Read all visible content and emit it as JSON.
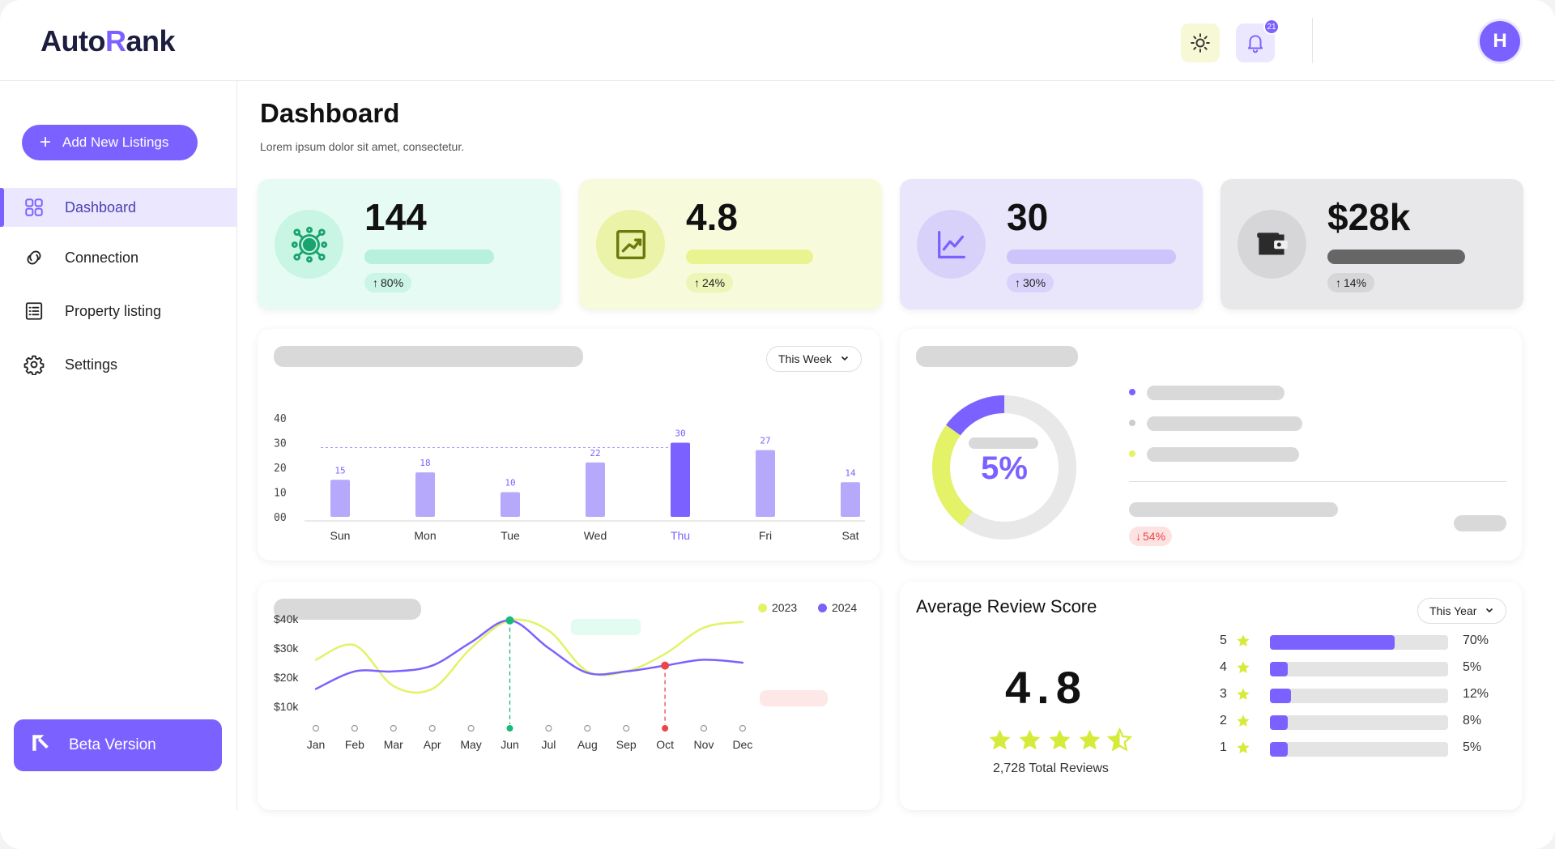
{
  "app": {
    "logo_prefix": "Auto",
    "logo_mark": "R",
    "logo_suffix": "ank"
  },
  "header": {
    "notification_count": "21",
    "avatar_initial": "H",
    "theme_icon": "sun-icon",
    "notification_icon": "bell-icon"
  },
  "sidebar": {
    "add_button": "Add New Listings",
    "items": [
      {
        "label": "Dashboard",
        "icon": "grid-icon",
        "active": true
      },
      {
        "label": "Connection",
        "icon": "link-icon",
        "active": false
      },
      {
        "label": "Property listing",
        "icon": "list-icon",
        "active": false
      },
      {
        "label": "Settings",
        "icon": "gear-icon",
        "active": false
      }
    ],
    "beta_button": "Beta Version"
  },
  "page": {
    "title": "Dashboard",
    "subtitle": "Lorem ipsum dolor sit amet, consectetur."
  },
  "stats": [
    {
      "value": "144",
      "change": "80%",
      "bg": "#e6fbf3",
      "circle": "#c8f5e4",
      "bar": "#b7f0dc",
      "chip": "#cdf5e7",
      "icon": "network-icon"
    },
    {
      "value": "4.8",
      "change": "24%",
      "bg": "#f7fbdc",
      "circle": "#eaf3a8",
      "bar": "#e9f38f",
      "chip": "#eef5b8",
      "icon": "trend-up-icon"
    },
    {
      "value": "30",
      "change": "30%",
      "bg": "#e9e6fc",
      "circle": "#d8d2fb",
      "bar": "#cdc4fb",
      "chip": "#d9d3fb",
      "icon": "line-chart-icon"
    },
    {
      "value": "$28k",
      "change": "14%",
      "bg": "#e8e8ea",
      "circle": "#d6d6d8",
      "bar": "#666666",
      "chip": "#d6d6d8",
      "icon": "wallet-icon"
    }
  ],
  "weekly": {
    "filter": "This Week",
    "chart_data": {
      "type": "bar",
      "categories": [
        "Sun",
        "Mon",
        "Tue",
        "Wed",
        "Thu",
        "Fri",
        "Sat"
      ],
      "values": [
        15,
        18,
        10,
        22,
        30,
        27,
        14
      ],
      "highlight": "Thu",
      "y_ticks": [
        "00",
        "10",
        "20",
        "30",
        "40"
      ],
      "ylim": [
        0,
        40
      ]
    }
  },
  "donut": {
    "center_label": "5%",
    "change": "54%",
    "chart_data": {
      "type": "pie",
      "segments": [
        {
          "value": 15,
          "color": "#7b61ff"
        },
        {
          "value": 25,
          "color": "#e3f266"
        },
        {
          "value": 60,
          "color": "#e8e8e8"
        }
      ]
    },
    "legend_colors": [
      "#7b61ff",
      "#cccccc",
      "#e3f266"
    ]
  },
  "trend": {
    "chart_data": {
      "type": "line",
      "categories": [
        "Jan",
        "Feb",
        "Mar",
        "Apr",
        "May",
        "Jun",
        "Jul",
        "Aug",
        "Sep",
        "Oct",
        "Nov",
        "Dec"
      ],
      "y_ticks": [
        "$10k",
        "$20k",
        "$30k",
        "$40k"
      ],
      "ylim": [
        10,
        40
      ],
      "series": [
        {
          "name": "2023",
          "color": "#e3f266",
          "values": [
            26,
            31,
            17,
            16,
            30,
            39.5,
            36,
            22,
            22,
            28,
            37,
            39
          ]
        },
        {
          "name": "2024",
          "color": "#7b61ff",
          "values": [
            16,
            22,
            22,
            24,
            32,
            39.5,
            30,
            21.5,
            22,
            24,
            26,
            25
          ]
        }
      ],
      "highlight_points": [
        {
          "month": "Jun",
          "color": "#18b97a"
        },
        {
          "month": "Oct",
          "color": "#ef4444"
        }
      ]
    }
  },
  "reviews": {
    "title": "Average Review Score",
    "filter": "This Year",
    "score": "4.8",
    "total": "2,728 Total Reviews",
    "rating": 4.5,
    "rows": [
      {
        "stars": "5",
        "percent": 70,
        "label": "70%"
      },
      {
        "stars": "4",
        "percent": 5,
        "label": "5%"
      },
      {
        "stars": "3",
        "percent": 12,
        "label": "12%"
      },
      {
        "stars": "2",
        "percent": 8,
        "label": "8%"
      },
      {
        "stars": "1",
        "percent": 5,
        "label": "5%"
      }
    ]
  }
}
